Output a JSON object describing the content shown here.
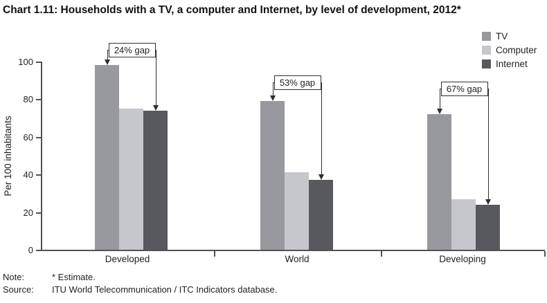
{
  "title": "Chart 1.11: Households with a TV, a computer and Internet, by level of development, 2012*",
  "notes": {
    "note_label": "Note:",
    "note_value": "* Estimate.",
    "source_label": "Source:",
    "source_value": "ITU World Telecommunication / ITC Indicators database."
  },
  "chart_data": {
    "type": "bar",
    "title": "Chart 1.11: Households with a TV, a computer and Internet, by level of development, 2012*",
    "categories": [
      "Developed",
      "World",
      "Developing"
    ],
    "series": [
      {
        "name": "TV",
        "color": "#98999e",
        "values": [
          98,
          79,
          72
        ]
      },
      {
        "name": "Computer",
        "color": "#c5c7cb",
        "values": [
          75,
          41,
          27
        ]
      },
      {
        "name": "Internet",
        "color": "#58595e",
        "values": [
          74,
          37,
          24
        ]
      }
    ],
    "annotations": [
      {
        "label": "24% gap",
        "category": "Developed",
        "from_series": "TV",
        "to_series": "Internet"
      },
      {
        "label": "53% gap",
        "category": "World",
        "from_series": "TV",
        "to_series": "Internet"
      },
      {
        "label": "67% gap",
        "category": "Developing",
        "from_series": "TV",
        "to_series": "Internet"
      }
    ],
    "xlabel": "",
    "ylabel": "Per 100 inhabitants",
    "yticks": [
      0,
      20,
      40,
      60,
      80,
      100
    ],
    "ylim": [
      0,
      100
    ],
    "grid": false,
    "legend_position": "top-right",
    "axis_color": "#515257",
    "annotation_line_color": "#2f2f33",
    "text_color": "#222222"
  }
}
